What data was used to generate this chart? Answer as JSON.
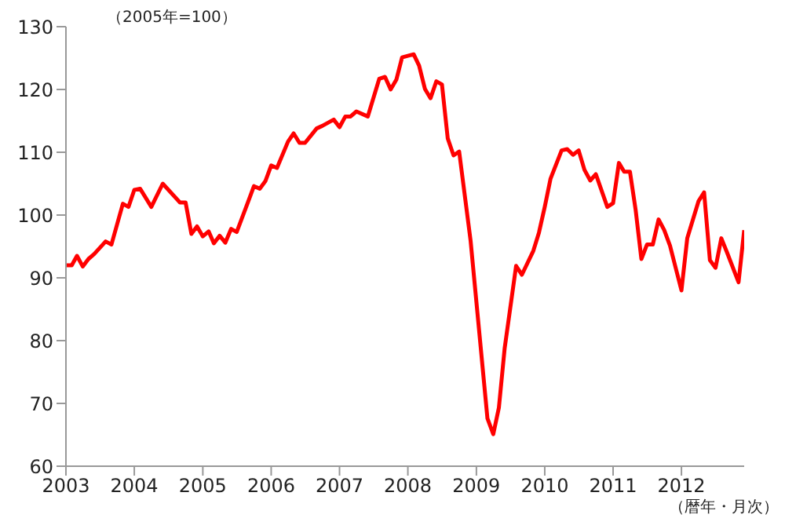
{
  "chart_data": {
    "type": "line",
    "annotations": [
      "（2005年=100）",
      "（暦年・月次）"
    ],
    "x": [
      "2003-01",
      "2003-02",
      "2003-03",
      "2003-04",
      "2003-05",
      "2003-06",
      "2003-08",
      "2003-09",
      "2003-11",
      "2003-12",
      "2004-01",
      "2004-02",
      "2004-04",
      "2004-06",
      "2004-09",
      "2004-10",
      "2004-11",
      "2004-12",
      "2005-01",
      "2005-02",
      "2005-03",
      "2005-04",
      "2005-05",
      "2005-06",
      "2005-07",
      "2005-09",
      "2005-10",
      "2005-11",
      "2005-12",
      "2006-01",
      "2006-02",
      "2006-04",
      "2006-05",
      "2006-06",
      "2006-07",
      "2006-09",
      "2006-10",
      "2006-12",
      "2007-01",
      "2007-02",
      "2007-03",
      "2007-04",
      "2007-06",
      "2007-08",
      "2007-09",
      "2007-10",
      "2007-11",
      "2007-12",
      "2008-02",
      "2008-03",
      "2008-04",
      "2008-05",
      "2008-06",
      "2008-07",
      "2008-08",
      "2008-09",
      "2008-10",
      "2008-12",
      "2009-03",
      "2009-04",
      "2009-05",
      "2009-06",
      "2009-08",
      "2009-09",
      "2009-11",
      "2009-12",
      "2010-01",
      "2010-02",
      "2010-04",
      "2010-05",
      "2010-06",
      "2010-07",
      "2010-08",
      "2010-09",
      "2010-10",
      "2010-12",
      "2011-01",
      "2011-02",
      "2011-03",
      "2011-04",
      "2011-05",
      "2011-06",
      "2011-07",
      "2011-08",
      "2011-09",
      "2011-10",
      "2011-11",
      "2012-01",
      "2012-02",
      "2012-04",
      "2012-05",
      "2012-06",
      "2012-07",
      "2012-08",
      "2012-09",
      "2012-11",
      "2012-12"
    ],
    "series": [
      {
        "color": "#ff0000",
        "values": [
          92,
          92,
          93.5,
          91.8,
          93,
          93.8,
          95.8,
          95.3,
          101.8,
          101.3,
          104,
          104.2,
          101.3,
          105,
          102,
          102,
          97,
          98.2,
          96.6,
          97.4,
          95.5,
          96.7,
          95.6,
          97.8,
          97.3,
          102.2,
          104.6,
          104.2,
          105.4,
          107.9,
          107.5,
          111.7,
          113,
          111.5,
          111.5,
          113.8,
          114.2,
          115.2,
          114,
          115.7,
          115.7,
          116.5,
          115.7,
          121.7,
          122,
          120,
          121.6,
          125.1,
          125.6,
          123.8,
          120.1,
          118.6,
          121.3,
          120.8,
          112.2,
          109.5,
          110.1,
          95.9,
          67.6,
          65.1,
          69.3,
          78.8,
          91.9,
          90.5,
          94.3,
          97.2,
          101.3,
          105.8,
          110.3,
          110.5,
          109.6,
          110.3,
          107.2,
          105.5,
          106.5,
          101.3,
          101.9,
          108.3,
          106.9,
          106.9,
          100.9,
          93,
          95.3,
          95.3,
          99.3,
          97.6,
          95.1,
          88,
          96.3,
          102.2,
          103.6,
          92.8,
          91.6,
          96.3,
          94,
          89.3,
          97.6
        ]
      }
    ],
    "xlim": [
      "2003-01",
      "2012-12"
    ],
    "xticks": [
      {
        "value": "2003-01",
        "label": "2003"
      },
      {
        "value": "2004-01",
        "label": "2004"
      },
      {
        "value": "2005-01",
        "label": "2005"
      },
      {
        "value": "2006-01",
        "label": "2006"
      },
      {
        "value": "2007-01",
        "label": "2007"
      },
      {
        "value": "2008-01",
        "label": "2008"
      },
      {
        "value": "2009-01",
        "label": "2009"
      },
      {
        "value": "2010-01",
        "label": "2010"
      },
      {
        "value": "2011-01",
        "label": "2011"
      },
      {
        "value": "2012-01",
        "label": "2012"
      }
    ],
    "ylim": [
      60,
      130
    ],
    "yticks": [
      60,
      70,
      80,
      90,
      100,
      110,
      120,
      130
    ],
    "grid": false
  }
}
